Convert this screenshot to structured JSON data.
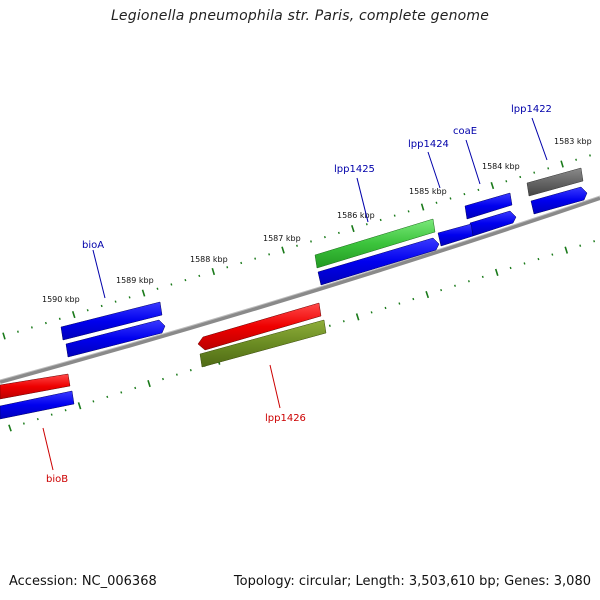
{
  "title": "Legionella pneumophila str. Paris, complete genome",
  "footer": {
    "accession": "Accession: NC_006368",
    "stats": "Topology: circular; Length: 3,503,610 bp; Genes: 3,080"
  },
  "ticks": [
    "1583 kbp",
    "1584 kbp",
    "1585 kbp",
    "1586 kbp",
    "1587 kbp",
    "1588 kbp",
    "1589 kbp",
    "1590 kbp"
  ],
  "genes": [
    {
      "name": "lpp1422",
      "label": "lpp1422",
      "color": "#0000aa"
    },
    {
      "name": "coaE",
      "label": "coaE",
      "color": "#0000aa"
    },
    {
      "name": "lpp1424",
      "label": "lpp1424",
      "color": "#0000aa"
    },
    {
      "name": "lpp1425",
      "label": "lpp1425",
      "color": "#0000aa"
    },
    {
      "name": "bioA",
      "label": "bioA",
      "color": "#0000aa"
    },
    {
      "name": "lpp1426",
      "label": "lpp1426",
      "color": "#cc0000"
    },
    {
      "name": "bioB",
      "label": "bioB",
      "color": "#cc0000"
    }
  ],
  "colors": {
    "backbone": "#808080",
    "tick": "#1a7a1a",
    "cds_blue": "#0000ee",
    "cds_red": "#ee0000",
    "cds_green": "#3cc43c",
    "cds_olive": "#6b8c23",
    "cds_gray": "#666666"
  }
}
